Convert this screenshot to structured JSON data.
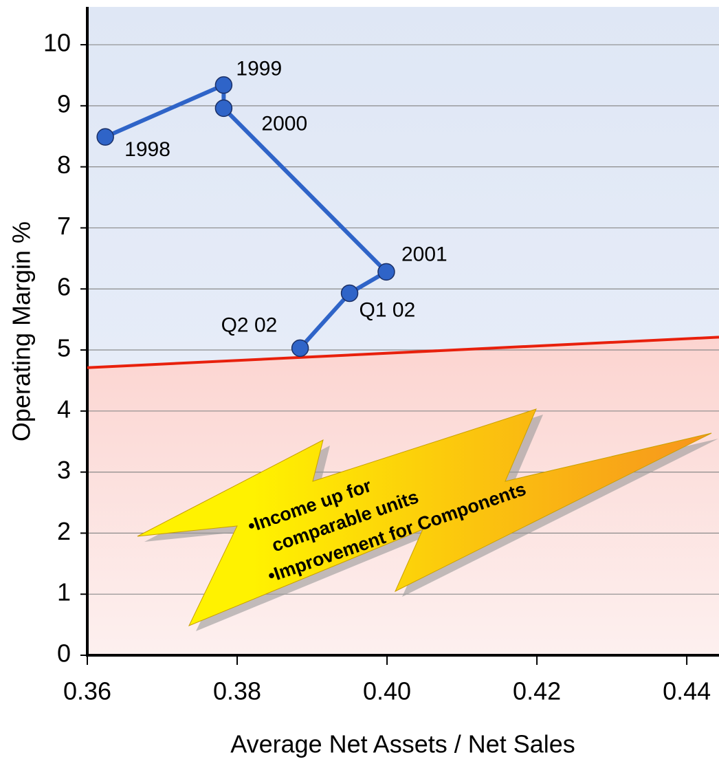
{
  "chart_data": {
    "type": "line",
    "xlabel": "Average Net Assets / Net Sales",
    "ylabel": "Operating Margin %",
    "x": [
      0.3624,
      0.3782,
      0.3782,
      0.3999,
      0.395,
      0.3884
    ],
    "series": [
      {
        "color": "#2f64c8",
        "values": [
          8.49,
          9.34,
          8.96,
          6.28,
          5.93,
          5.03
        ],
        "point_labels": [
          "1998",
          "1999",
          "2000",
          "2001",
          "Q1 02",
          "Q2 02"
        ]
      }
    ],
    "reference_line": {
      "x": [
        0.36,
        0.4443
      ],
      "y": [
        4.71,
        5.21
      ],
      "color": "#e8200c"
    },
    "xlim": [
      0.36,
      0.4443
    ],
    "ylim": [
      0,
      10.62
    ],
    "xticks": [
      0.36,
      0.38,
      {
        "value": 0.4,
        "label": "0.40"
      },
      0.42,
      0.44
    ],
    "yticks": [
      0,
      1,
      2,
      3,
      4,
      5,
      6,
      7,
      8,
      9,
      10
    ],
    "grid": true,
    "annotation": [
      "•Income up for",
      "comparable units",
      "•Improvement for Components"
    ]
  }
}
